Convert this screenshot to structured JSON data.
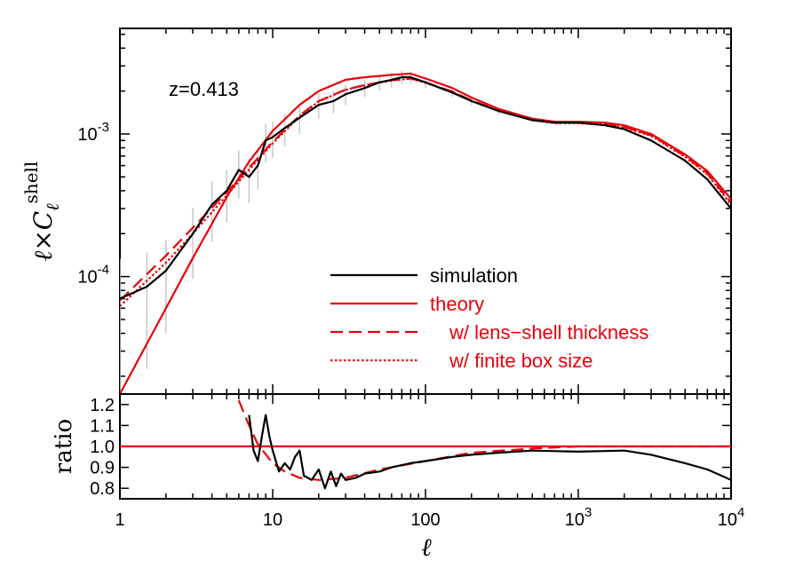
{
  "chart_data": [
    {
      "type": "line",
      "panel": "main",
      "ylabel": "ℓ×C_ℓ^shell",
      "ylabel_main": "ℓ×C",
      "ylabel_sub": "ℓ",
      "ylabel_sup": "shell",
      "x_scale": "log",
      "y_scale": "log",
      "xlim": [
        1,
        10000
      ],
      "ylim": [
        1.5e-05,
        0.0055
      ],
      "annotation": "z=0.413",
      "legend_placement": "lower-right",
      "y_tick_labels": [
        {
          "value": 0.0001,
          "base": "10",
          "exp": "-4"
        },
        {
          "value": 0.001,
          "base": "10",
          "exp": "-3"
        }
      ],
      "series": [
        {
          "name": "simulation",
          "color": "#000000",
          "style": "solid",
          "x": [
            1,
            1.5,
            2,
            3,
            4,
            5,
            6,
            7,
            8,
            9,
            10,
            12,
            15,
            20,
            25,
            30,
            40,
            50,
            60,
            70,
            80,
            100,
            150,
            200,
            300,
            500,
            700,
            1000,
            1500,
            2000,
            3000,
            5000,
            7000,
            10000
          ],
          "y": [
            7e-05,
            8.5e-05,
            0.00011,
            0.0002,
            0.00032,
            0.0004,
            0.00056,
            0.0005,
            0.0006,
            0.0009,
            0.00095,
            0.0011,
            0.0013,
            0.0016,
            0.0017,
            0.0019,
            0.0021,
            0.0023,
            0.0024,
            0.0025,
            0.0025,
            0.0023,
            0.00195,
            0.0017,
            0.00145,
            0.00125,
            0.0012,
            0.0012,
            0.00115,
            0.00108,
            0.0009,
            0.00065,
            0.00048,
            0.0003
          ]
        },
        {
          "name": "theory",
          "color": "#e8000b",
          "style": "solid",
          "x": [
            1,
            2,
            3,
            5,
            7,
            10,
            15,
            20,
            30,
            40,
            50,
            60,
            80,
            100,
            150,
            200,
            300,
            500,
            700,
            1000,
            1500,
            2000,
            3000,
            5000,
            7000,
            10000
          ],
          "y": [
            1.5e-05,
            6e-05,
            0.000135,
            0.00036,
            0.00064,
            0.00105,
            0.0016,
            0.002,
            0.0024,
            0.0025,
            0.00255,
            0.0026,
            0.00265,
            0.00245,
            0.0021,
            0.0018,
            0.0015,
            0.00128,
            0.00122,
            0.00122,
            0.0012,
            0.00115,
            0.001,
            0.00072,
            0.00055,
            0.00035
          ]
        },
        {
          "name": "w/ lens−shell thickness",
          "color": "#e8000b",
          "style": "dashed",
          "x": [
            1,
            2,
            3,
            5,
            7,
            10,
            15,
            20,
            30,
            40,
            50,
            60,
            80,
            100,
            150,
            200,
            300,
            500,
            700,
            1000,
            1500,
            2000,
            3000,
            5000,
            7000,
            10000
          ],
          "y": [
            6.8e-05,
            0.00014,
            0.00022,
            0.00039,
            0.00058,
            0.00088,
            0.00135,
            0.0017,
            0.00205,
            0.0022,
            0.0023,
            0.00238,
            0.00245,
            0.0023,
            0.00198,
            0.00172,
            0.00146,
            0.00126,
            0.0012,
            0.0012,
            0.00117,
            0.00112,
            0.00098,
            0.0007,
            0.00053,
            0.00033
          ]
        },
        {
          "name": "w/ finite box size",
          "color": "#e8000b",
          "style": "dotted",
          "x": [
            1,
            2,
            3,
            5,
            7,
            10,
            15,
            20,
            30,
            40,
            50,
            60,
            80,
            100,
            150,
            200,
            300,
            500,
            700,
            1000,
            1500,
            2000,
            3000,
            5000,
            7000,
            10000
          ],
          "y": [
            6.2e-05,
            0.000125,
            0.0002,
            0.00037,
            0.00056,
            0.00086,
            0.00133,
            0.00169,
            0.00204,
            0.00219,
            0.00229,
            0.00237,
            0.00244,
            0.00229,
            0.00197,
            0.00171,
            0.00145,
            0.00125,
            0.00119,
            0.00119,
            0.00116,
            0.00111,
            0.00097,
            0.00069,
            0.00052,
            0.00032
          ]
        }
      ]
    },
    {
      "type": "line",
      "panel": "ratio",
      "xlabel": "ℓ",
      "ylabel": "ratio",
      "x_scale": "log",
      "xlim": [
        1,
        10000
      ],
      "ylim": [
        0.75,
        1.25
      ],
      "y_ticks": [
        "0.8",
        "0.9",
        "1.0",
        "1.1",
        "1.2"
      ],
      "x_tick_labels": [
        {
          "value": 1,
          "text": "1"
        },
        {
          "value": 10,
          "text": "10"
        },
        {
          "value": 100,
          "text": "100"
        },
        {
          "value": 1000,
          "base": "10",
          "exp": "3"
        },
        {
          "value": 10000,
          "base": "10",
          "exp": "4"
        }
      ],
      "series": [
        {
          "name": "simulation",
          "color": "#000000",
          "style": "solid",
          "x": [
            7,
            7.5,
            8,
            8.5,
            9,
            9.5,
            10,
            11,
            12,
            13,
            14,
            15,
            16,
            18,
            20,
            22,
            24,
            26,
            28,
            30,
            35,
            40,
            50,
            60,
            80,
            100,
            150,
            200,
            300,
            500,
            1000,
            2000,
            3000,
            5000,
            7000,
            10000
          ],
          "y": [
            1.15,
            0.98,
            0.93,
            1.05,
            1.15,
            1.05,
            0.98,
            0.88,
            0.92,
            0.89,
            0.95,
            0.98,
            0.86,
            0.84,
            0.89,
            0.8,
            0.88,
            0.81,
            0.87,
            0.84,
            0.85,
            0.87,
            0.88,
            0.9,
            0.92,
            0.93,
            0.95,
            0.96,
            0.97,
            0.98,
            0.975,
            0.98,
            0.96,
            0.92,
            0.89,
            0.84
          ]
        },
        {
          "name": "w/ lens−shell thickness",
          "color": "#e8000b",
          "style": "dashed",
          "x": [
            6,
            7,
            8,
            10,
            12,
            15,
            20,
            30,
            50,
            100,
            200,
            500,
            1000,
            10000
          ],
          "y": [
            1.22,
            1.1,
            1.01,
            0.92,
            0.88,
            0.85,
            0.84,
            0.85,
            0.89,
            0.93,
            0.97,
            0.99,
            1.0,
            1.0
          ]
        },
        {
          "name": "theory",
          "color": "#e8000b",
          "style": "solid",
          "x": [
            1,
            10000
          ],
          "y": [
            1.0,
            1.0
          ]
        }
      ]
    }
  ]
}
